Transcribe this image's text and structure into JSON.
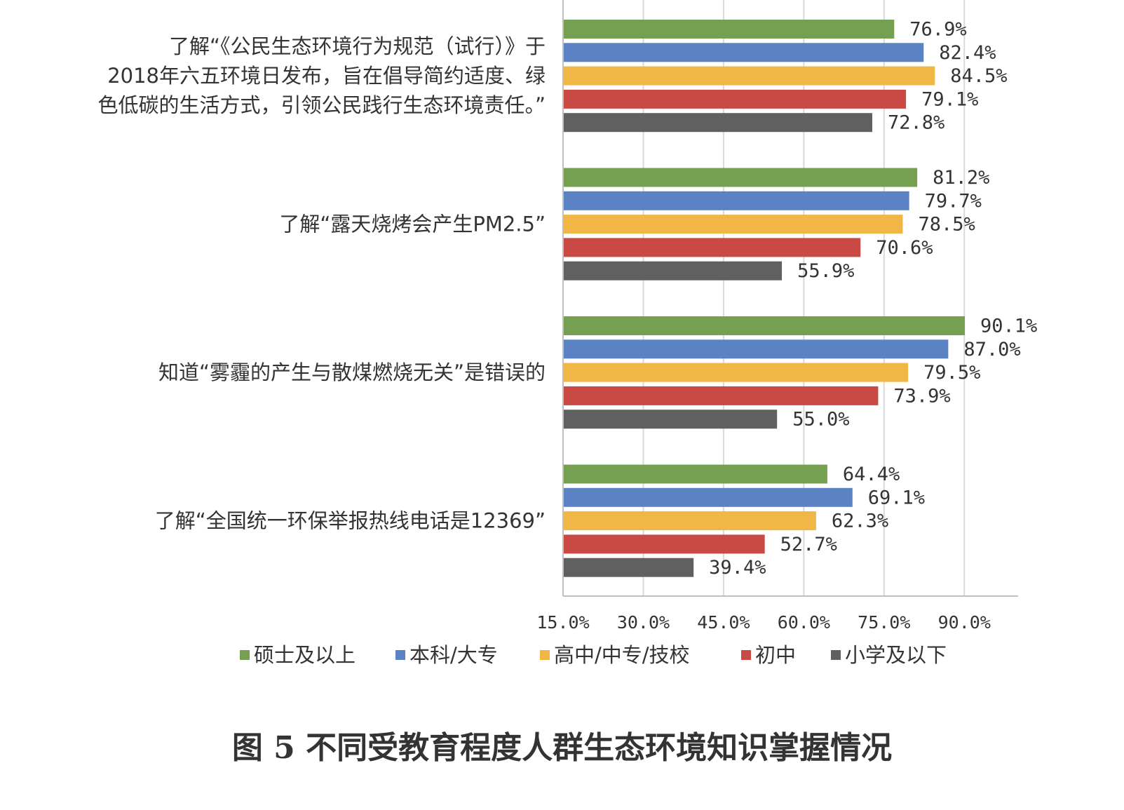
{
  "chart_data": {
    "type": "bar",
    "orientation": "horizontal",
    "categories": [
      [
        "了解“《公民生态环境行为规范（试行）》于",
        "2018年六五环境日发布，旨在倡导简约适度、绿",
        "色低碳的生活方式，引领公民践行生态环境责任。”"
      ],
      [
        "了解“露天烧烤会产生PM2.5”"
      ],
      [
        "知道“雾霾的产生与散煤燃烧无关”是错误的"
      ],
      [
        "了解“全国统一环保举报热线电话是12369”"
      ]
    ],
    "series": [
      {
        "name": "硕士及以上",
        "color": "#76a051",
        "values": [
          76.9,
          81.2,
          90.1,
          64.4
        ],
        "labels": [
          "76.9%",
          "81.2%",
          "90.1%",
          "64.4%"
        ]
      },
      {
        "name": "本科/大专",
        "color": "#5b82c2",
        "values": [
          82.4,
          79.7,
          87.0,
          69.1
        ],
        "labels": [
          "82.4%",
          "79.7%",
          "87.0%",
          "69.1%"
        ]
      },
      {
        "name": "高中/中专/技校",
        "color": "#f0b646",
        "values": [
          84.5,
          78.5,
          79.5,
          62.3
        ],
        "labels": [
          "84.5%",
          "78.5%",
          "79.5%",
          "62.3%"
        ]
      },
      {
        "name": "初中",
        "color": "#c94a44",
        "values": [
          79.1,
          70.6,
          73.9,
          52.7
        ],
        "labels": [
          "79.1%",
          "70.6%",
          "73.9%",
          "52.7%"
        ]
      },
      {
        "name": "小学及以下",
        "color": "#606060",
        "values": [
          72.8,
          55.9,
          55.0,
          39.4
        ],
        "labels": [
          "72.8%",
          "55.9%",
          "55.0%",
          "39.4%"
        ]
      }
    ],
    "xlim": [
      15,
      100
    ],
    "xticks": [
      15,
      30,
      45,
      60,
      75,
      90
    ],
    "xtick_labels": [
      "15.0%",
      "30.0%",
      "45.0%",
      "60.0%",
      "75.0%",
      "90.0%"
    ],
    "grid": true,
    "legend_position": "bottom",
    "title": "图 5 不同受教育程度人群生态环境知识掌握情况"
  }
}
